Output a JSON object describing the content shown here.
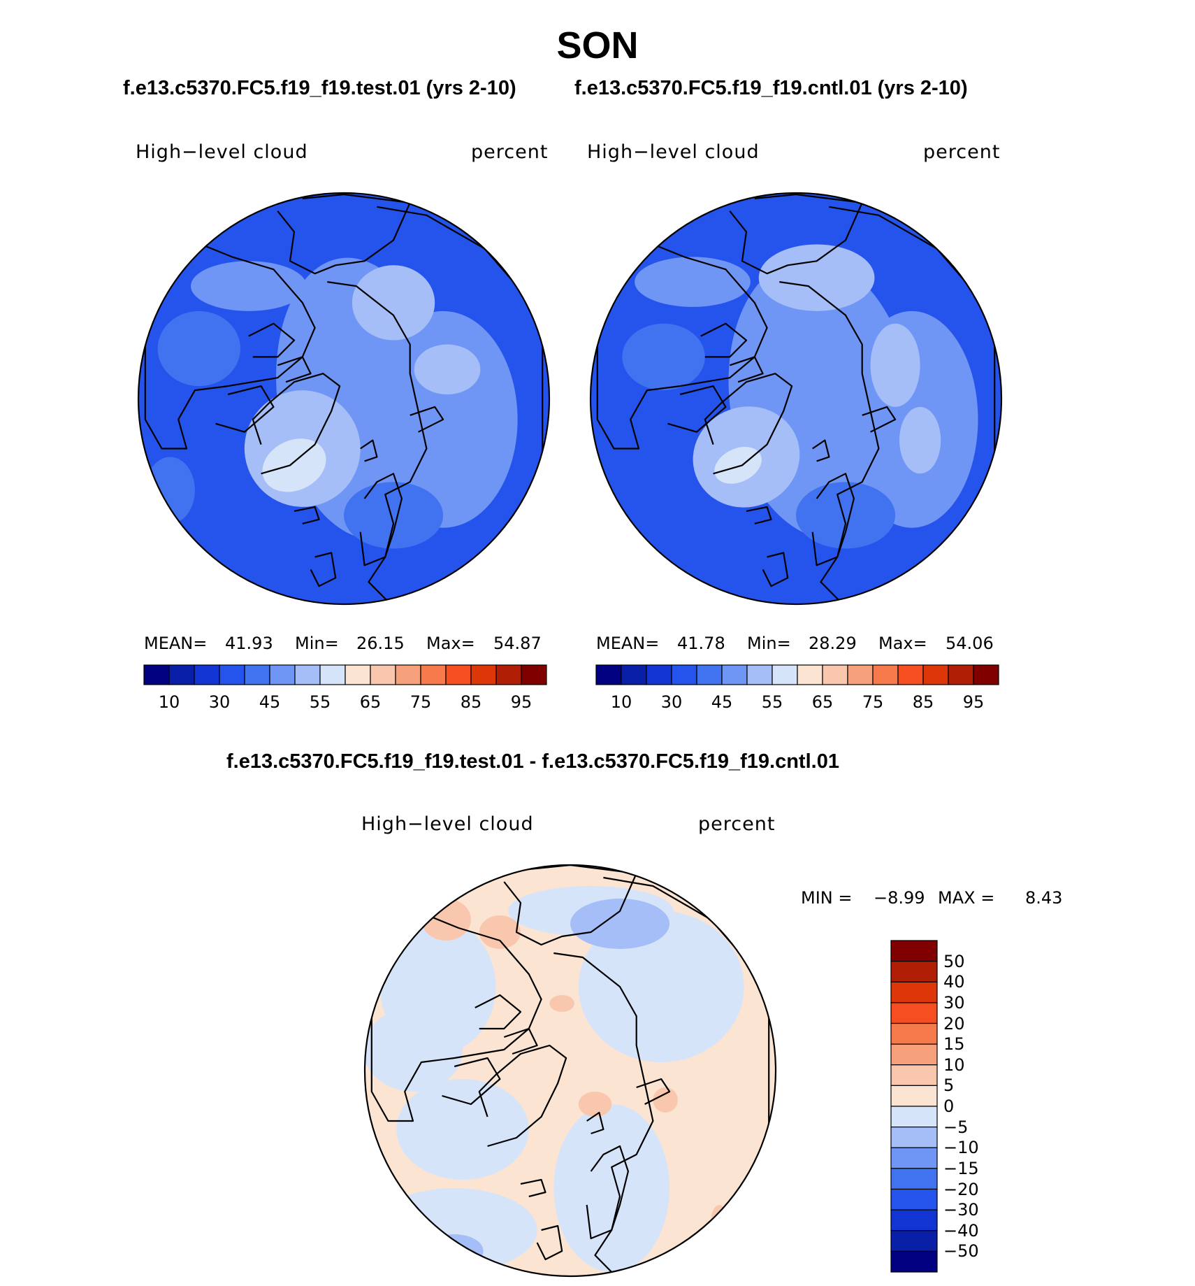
{
  "figure": {
    "title": "SON",
    "top_subtitle_left": "f.e13.c5370.FC5.f19_f19.test.01 (yrs 2-10)",
    "top_subtitle_right": "f.e13.c5370.FC5.f19_f19.cntl.01 (yrs 2-10)",
    "diff_subtitle": "f.e13.c5370.FC5.f19_f19.test.01 - f.e13.c5370.FC5.f19_f19.cntl.01"
  },
  "panels": {
    "test": {
      "variable": "High−level cloud",
      "units": "percent",
      "mean_label": "MEAN=",
      "mean": "41.93",
      "min_label": "Min=",
      "min": "26.15",
      "max_label": "Max=",
      "max": "54.87"
    },
    "cntl": {
      "variable": "High−level cloud",
      "units": "percent",
      "mean_label": "MEAN=",
      "mean": "41.78",
      "min_label": "Min=",
      "min": "28.29",
      "max_label": "Max=",
      "max": "54.06"
    },
    "diff": {
      "variable": "High−level cloud",
      "units": "percent",
      "min_label": "MIN =",
      "min": "−8.99",
      "max_label": "MAX =",
      "max": "8.43"
    }
  },
  "colorbars": {
    "abs": {
      "colors": [
        "#000080",
        "#0a1fa8",
        "#1234d2",
        "#2554ec",
        "#4173f0",
        "#6f96f4",
        "#a5bef8",
        "#d6e4fa",
        "#fbe4d2",
        "#f9c7ad",
        "#f7a07c",
        "#f77a4c",
        "#f64e20",
        "#dd3609",
        "#b11e06",
        "#800000"
      ],
      "tick_labels": [
        "10",
        "30",
        "45",
        "55",
        "65",
        "75",
        "85",
        "95"
      ]
    },
    "diff": {
      "colors": [
        "#800000",
        "#b11e06",
        "#dd3609",
        "#f64e20",
        "#f77a4c",
        "#f7a07c",
        "#f9c7ad",
        "#fbe4d2",
        "#d6e4fa",
        "#a5bef8",
        "#6f96f4",
        "#4173f0",
        "#2554ec",
        "#1234d2",
        "#0a1fa8",
        "#000080"
      ],
      "tick_labels": [
        "50",
        "40",
        "30",
        "20",
        "15",
        "10",
        "5",
        "0",
        "−5",
        "−10",
        "−15",
        "−20",
        "−30",
        "−40",
        "−50"
      ]
    }
  },
  "map_colors": {
    "abs_base": "#2554ec",
    "abs_mid": "#4173f0",
    "abs_light": "#6f96f4",
    "abs_lighter": "#a5bef8",
    "abs_lightest": "#d6e4fa",
    "diff_pos": "#fbe4d2",
    "diff_neg": "#d6e4fa",
    "diff_pos2": "#f9c7ad",
    "diff_neg2": "#a5bef8",
    "coast": "#000000"
  }
}
